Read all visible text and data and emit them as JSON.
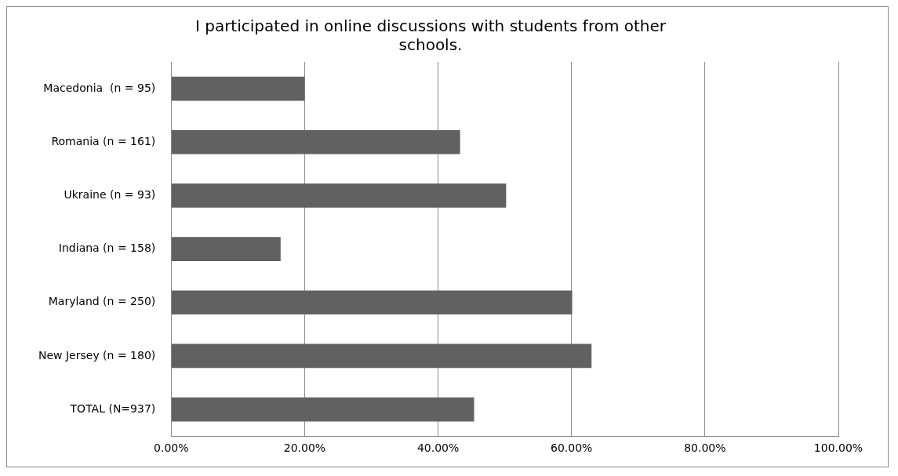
{
  "chart_data": {
    "type": "bar",
    "orientation": "horizontal",
    "title": "I participated in online discussions with students from other schools.",
    "categories": [
      "Macedonia  (n = 95)",
      "Romania (n = 161)",
      "Ukraine (n = 93)",
      "Indiana (n = 158)",
      "Maryland (n = 250)",
      "New Jersey (n = 180)",
      "TOTAL (N=937)"
    ],
    "values": [
      20.0,
      43.3,
      50.2,
      16.4,
      60.1,
      63.0,
      45.4
    ],
    "color": "#616161",
    "xlim": [
      0,
      100
    ],
    "xticks": [
      {
        "value": 0,
        "label": "0.00%"
      },
      {
        "value": 20,
        "label": "20.00%"
      },
      {
        "value": 40,
        "label": "40.00%"
      },
      {
        "value": 60,
        "label": "60.00%"
      },
      {
        "value": 80,
        "label": "80.00%"
      },
      {
        "value": 100,
        "label": "100.00%"
      }
    ],
    "grid": "x",
    "legend": false
  }
}
